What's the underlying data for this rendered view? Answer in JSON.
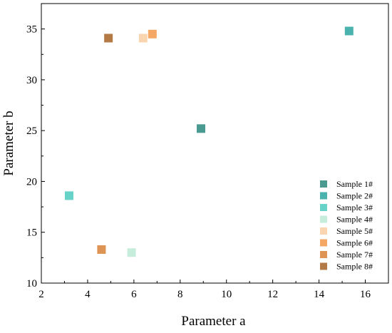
{
  "chart_data": {
    "type": "scatter",
    "title": "",
    "xlabel": "Parameter a",
    "ylabel": "Parameter b",
    "xlim": [
      2,
      17
    ],
    "ylim": [
      10,
      37.5
    ],
    "xticks": [
      2,
      4,
      6,
      8,
      10,
      12,
      14,
      16
    ],
    "yticks": [
      10,
      15,
      20,
      25,
      30,
      35
    ],
    "grid": false,
    "legend_position": "bottom-right",
    "marker": "square",
    "series": [
      {
        "name": "Sample 1#",
        "color": "#4a9a92",
        "x": [
          8.9
        ],
        "y": [
          25.2
        ]
      },
      {
        "name": "Sample 2#",
        "color": "#4bb3ad",
        "x": [
          15.3
        ],
        "y": [
          34.8
        ]
      },
      {
        "name": "Sample 3#",
        "color": "#66d2c8",
        "x": [
          3.2
        ],
        "y": [
          18.6
        ]
      },
      {
        "name": "Sample 4#",
        "color": "#c6ecdc",
        "x": [
          5.9
        ],
        "y": [
          13.0
        ]
      },
      {
        "name": "Sample 5#",
        "color": "#f9d6b0",
        "x": [
          6.4
        ],
        "y": [
          34.1
        ]
      },
      {
        "name": "Sample 6#",
        "color": "#f4a864",
        "x": [
          6.8
        ],
        "y": [
          34.5
        ]
      },
      {
        "name": "Sample 7#",
        "color": "#dd9455",
        "x": [
          4.6
        ],
        "y": [
          13.3
        ]
      },
      {
        "name": "Sample 8#",
        "color": "#b47a46",
        "x": [
          4.9
        ],
        "y": [
          34.1
        ]
      }
    ]
  }
}
